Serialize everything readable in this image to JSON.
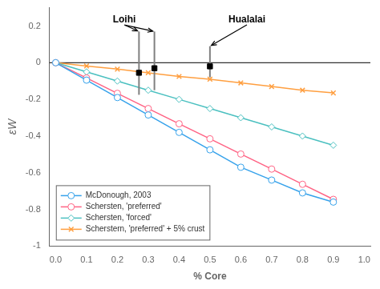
{
  "chart_data": {
    "type": "line",
    "x": [
      0.0,
      0.1,
      0.2,
      0.3,
      0.4,
      0.5,
      0.6,
      0.7,
      0.8,
      0.9
    ],
    "series": [
      {
        "name": "McDonough, 2003",
        "marker": "circle",
        "values": [
          0.0,
          -0.095,
          -0.19,
          -0.285,
          -0.38,
          -0.475,
          -0.57,
          -0.64,
          -0.71,
          -0.76
        ]
      },
      {
        "name": "Schersten, 'preferred'",
        "marker": "circle",
        "values": [
          0.0,
          -0.083,
          -0.167,
          -0.25,
          -0.333,
          -0.415,
          -0.498,
          -0.58,
          -0.663,
          -0.745
        ]
      },
      {
        "name": "Schersten, 'forced'",
        "marker": "diamond",
        "values": [
          0.0,
          -0.05,
          -0.1,
          -0.15,
          -0.2,
          -0.25,
          -0.3,
          -0.35,
          -0.4,
          -0.45
        ]
      },
      {
        "name": "Scherstern, 'preferred' + 5% crust",
        "marker": "x",
        "values": [
          0.0,
          -0.018,
          -0.035,
          -0.055,
          -0.075,
          -0.09,
          -0.11,
          -0.13,
          -0.15,
          -0.165
        ]
      }
    ],
    "error_points": [
      {
        "x": 0.27,
        "y": -0.055,
        "err_lower": 0.12,
        "err_upper": 0.225
      },
      {
        "x": 0.32,
        "y": -0.03,
        "err_lower": 0.12,
        "err_upper": 0.2
      },
      {
        "x": 0.5,
        "y": -0.02,
        "err_lower": 0.06,
        "err_upper": 0.11
      }
    ],
    "hlines": [
      0
    ],
    "annotations": [
      {
        "text": "Loihi",
        "x": 0.185,
        "y": 0.22,
        "arrows": [
          {
            "x": 0.27,
            "y": 0.17
          },
          {
            "x": 0.32,
            "y": 0.17,
            "from_x": 0.225,
            "from_y": 0.205
          }
        ]
      },
      {
        "text": "Hualalai",
        "x": 0.56,
        "y": 0.22,
        "arrows": [
          {
            "x": 0.5,
            "y": 0.09
          }
        ]
      }
    ],
    "xlabel": "% Core",
    "ylabel": "εW",
    "xlim": [
      -0.02,
      1.02
    ],
    "ylim": [
      -1.0,
      0.3
    ],
    "xticks": [
      {
        "value": 0,
        "label": "0.0"
      },
      0.1,
      0.2,
      0.3,
      0.4,
      0.5,
      0.6,
      0.7,
      0.8,
      0.9,
      {
        "value": 1,
        "label": "1.0"
      }
    ],
    "yticks": [
      -1,
      -0.8,
      -0.6,
      -0.4,
      -0.2,
      0,
      0.2
    ],
    "grid": false,
    "legend": "lower left"
  }
}
